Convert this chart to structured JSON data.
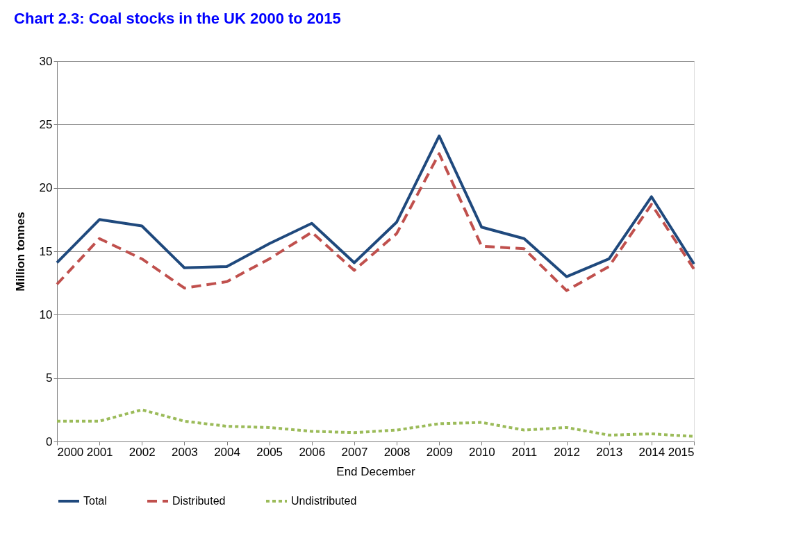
{
  "chart_data": {
    "type": "line",
    "title": "Chart 2.3: Coal stocks in the UK 2000 to 2015",
    "xlabel": "End December",
    "ylabel": "Million  tonnes",
    "x": [
      2000,
      2001,
      2002,
      2003,
      2004,
      2005,
      2006,
      2007,
      2008,
      2009,
      2010,
      2011,
      2012,
      2013,
      2014,
      2015
    ],
    "xlim": [
      2000,
      2015
    ],
    "xticks": [
      2000,
      2001,
      2002,
      2003,
      2004,
      2005,
      2006,
      2007,
      2008,
      2009,
      2010,
      2011,
      2012,
      2013,
      2014,
      2015
    ],
    "ylim": [
      0,
      30
    ],
    "yticks": [
      0,
      5,
      10,
      15,
      20,
      25,
      30
    ],
    "grid": "y",
    "legend": "bottom",
    "marker": "none",
    "series": [
      {
        "name": "Total",
        "color": "#1f497d",
        "line_style": "solid",
        "values": [
          14.1,
          17.5,
          17.0,
          13.7,
          13.8,
          15.6,
          17.2,
          14.1,
          17.3,
          24.1,
          16.9,
          16.0,
          13.0,
          14.4,
          19.3,
          14.0
        ]
      },
      {
        "name": "Distributed",
        "color": "#c0504d",
        "line_style": "dashed",
        "values": [
          12.4,
          16.0,
          14.4,
          12.1,
          12.6,
          14.4,
          16.5,
          13.5,
          16.4,
          22.7,
          15.4,
          15.2,
          11.9,
          13.8,
          18.7,
          13.6
        ]
      },
      {
        "name": "Undistributed",
        "color": "#9bbb59",
        "line_style": "dotted",
        "values": [
          1.6,
          1.6,
          2.5,
          1.6,
          1.2,
          1.1,
          0.8,
          0.7,
          0.9,
          1.4,
          1.5,
          0.9,
          1.1,
          0.5,
          0.6,
          0.4
        ]
      }
    ]
  }
}
